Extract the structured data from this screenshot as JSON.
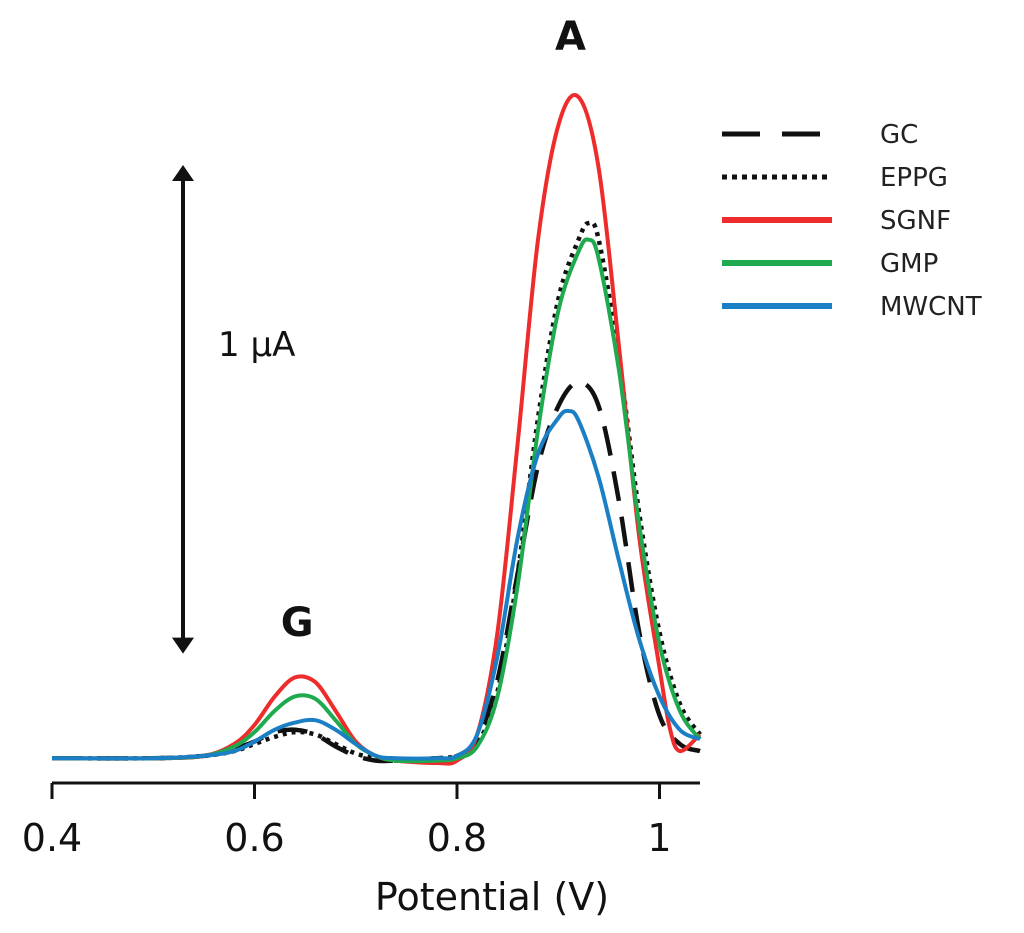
{
  "chart_data": {
    "type": "line",
    "title": "",
    "xlabel": "Potential (V)",
    "ylabel": "",
    "xlim": [
      0.4,
      1.04
    ],
    "ylim": [
      0,
      2.8
    ],
    "x_ticks": [
      0.4,
      0.6,
      0.8,
      1.0
    ],
    "x_tick_labels": [
      "0.4",
      "0.6",
      "0.8",
      "1"
    ],
    "grid": false,
    "legend_position": "top-right",
    "scale_bar": {
      "label": "1 µA",
      "value": 1.6
    },
    "peak_labels": [
      {
        "text": "G",
        "x": 0.65
      },
      {
        "text": "A",
        "x": 0.92
      }
    ],
    "series": [
      {
        "name": "GC",
        "color": "#111111",
        "style": "dashed",
        "x": [
          0.4,
          0.5,
          0.55,
          0.58,
          0.6,
          0.62,
          0.64,
          0.66,
          0.68,
          0.7,
          0.72,
          0.74,
          0.78,
          0.8,
          0.82,
          0.84,
          0.86,
          0.88,
          0.9,
          0.92,
          0.94,
          0.96,
          0.98,
          1.0,
          1.02,
          1.04
        ],
        "y": [
          0.02,
          0.02,
          0.03,
          0.06,
          0.09,
          0.13,
          0.14,
          0.12,
          0.07,
          0.03,
          0.01,
          0.01,
          0.02,
          0.03,
          0.1,
          0.35,
          0.8,
          1.25,
          1.5,
          1.6,
          1.5,
          1.1,
          0.55,
          0.2,
          0.08,
          0.05
        ]
      },
      {
        "name": "EPPG",
        "color": "#111111",
        "style": "dotted",
        "x": [
          0.4,
          0.5,
          0.55,
          0.58,
          0.6,
          0.62,
          0.64,
          0.66,
          0.68,
          0.7,
          0.72,
          0.74,
          0.78,
          0.8,
          0.82,
          0.84,
          0.86,
          0.88,
          0.9,
          0.92,
          0.93,
          0.94,
          0.96,
          0.98,
          1.0,
          1.02,
          1.04
        ],
        "y": [
          0.02,
          0.02,
          0.03,
          0.05,
          0.08,
          0.11,
          0.13,
          0.12,
          0.08,
          0.04,
          0.02,
          0.01,
          0.02,
          0.03,
          0.08,
          0.3,
          0.8,
          1.45,
          1.95,
          2.2,
          2.27,
          2.2,
          1.7,
          1.05,
          0.55,
          0.25,
          0.12
        ]
      },
      {
        "name": "SGNF",
        "color": "#ee2c2c",
        "style": "solid",
        "x": [
          0.4,
          0.5,
          0.55,
          0.58,
          0.6,
          0.62,
          0.64,
          0.66,
          0.68,
          0.7,
          0.72,
          0.74,
          0.78,
          0.8,
          0.82,
          0.84,
          0.86,
          0.88,
          0.9,
          0.92,
          0.94,
          0.96,
          0.98,
          1.0,
          1.01,
          1.02,
          1.04
        ],
        "y": [
          0.02,
          0.02,
          0.03,
          0.08,
          0.16,
          0.28,
          0.36,
          0.34,
          0.22,
          0.09,
          0.03,
          0.01,
          0.0,
          0.01,
          0.12,
          0.55,
          1.35,
          2.2,
          2.68,
          2.8,
          2.5,
          1.75,
          0.95,
          0.4,
          0.15,
          0.05,
          0.12
        ]
      },
      {
        "name": "GMP",
        "color": "#1faa4f",
        "style": "solid",
        "x": [
          0.4,
          0.5,
          0.55,
          0.58,
          0.6,
          0.62,
          0.64,
          0.66,
          0.68,
          0.7,
          0.72,
          0.74,
          0.78,
          0.8,
          0.82,
          0.84,
          0.86,
          0.88,
          0.9,
          0.92,
          0.93,
          0.94,
          0.96,
          0.98,
          1.0,
          1.02,
          1.04
        ],
        "y": [
          0.02,
          0.02,
          0.03,
          0.07,
          0.13,
          0.22,
          0.28,
          0.27,
          0.18,
          0.08,
          0.03,
          0.01,
          0.01,
          0.02,
          0.07,
          0.28,
          0.75,
          1.4,
          1.9,
          2.15,
          2.2,
          2.12,
          1.65,
          1.0,
          0.5,
          0.22,
          0.1
        ]
      },
      {
        "name": "MWCNT",
        "color": "#1a7fc4",
        "style": "solid",
        "x": [
          0.4,
          0.5,
          0.55,
          0.58,
          0.6,
          0.62,
          0.64,
          0.66,
          0.68,
          0.7,
          0.72,
          0.74,
          0.78,
          0.8,
          0.82,
          0.84,
          0.86,
          0.88,
          0.9,
          0.91,
          0.92,
          0.94,
          0.96,
          0.98,
          1.0,
          1.02,
          1.04
        ],
        "y": [
          0.02,
          0.02,
          0.03,
          0.05,
          0.09,
          0.14,
          0.17,
          0.18,
          0.14,
          0.08,
          0.03,
          0.02,
          0.02,
          0.03,
          0.12,
          0.45,
          0.95,
          1.3,
          1.45,
          1.48,
          1.44,
          1.2,
          0.85,
          0.52,
          0.28,
          0.14,
          0.1
        ]
      }
    ]
  }
}
